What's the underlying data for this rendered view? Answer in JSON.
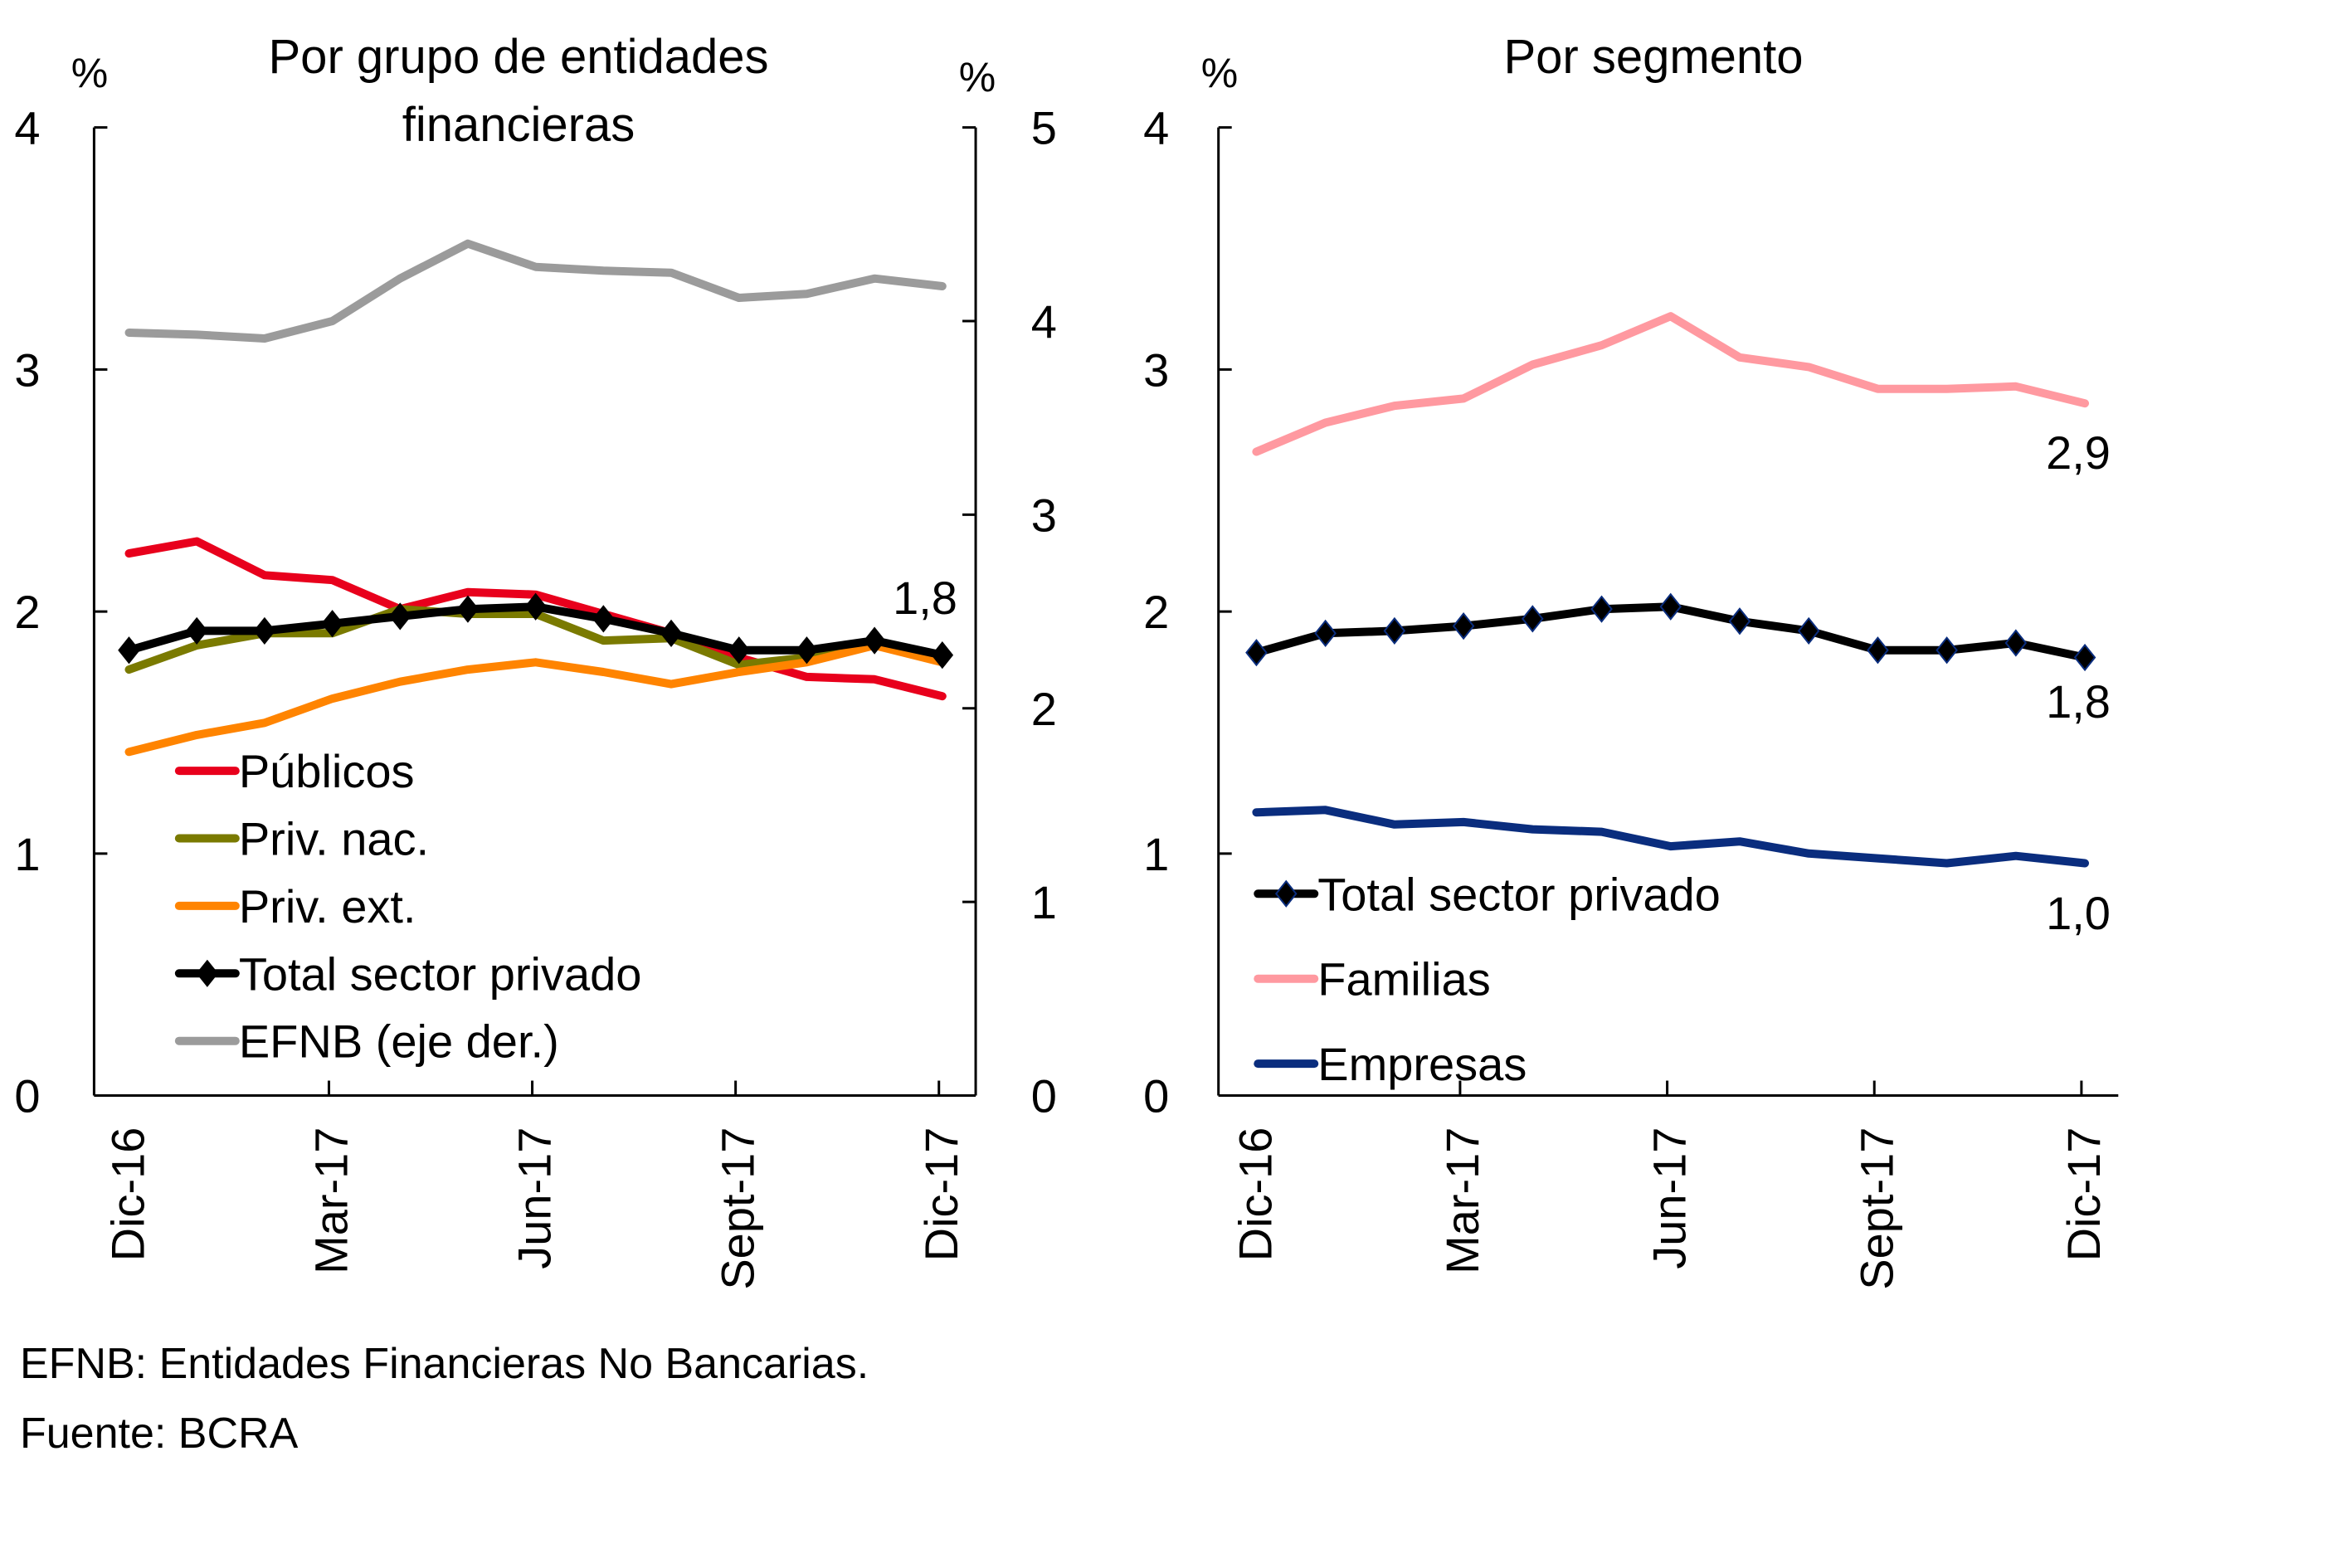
{
  "charts": [
    {
      "title_lines": [
        "Por grupo de entidades",
        "financieras"
      ],
      "left_unit": "%",
      "right_unit": "%",
      "left_ylim": [
        0,
        4
      ],
      "right_ylim": [
        0,
        5
      ],
      "left_ticks": [
        "0",
        "1",
        "2",
        "3",
        "4"
      ],
      "right_ticks": [
        "0",
        "1",
        "2",
        "3",
        "4",
        "5"
      ],
      "xtick_labels": [
        "Dic-16",
        "Mar-17",
        "Jun-17",
        "Sept-17",
        "Dic-17"
      ],
      "end_label": "1,8",
      "legend": [
        "Públicos",
        "Priv. nac.",
        "Priv. ext.",
        "Total sector privado",
        "EFNB (eje der.)"
      ]
    },
    {
      "title_lines": [
        "Por segmento"
      ],
      "left_unit": "%",
      "left_ylim": [
        0,
        4
      ],
      "left_ticks": [
        "0",
        "1",
        "2",
        "3",
        "4"
      ],
      "xtick_labels": [
        "Dic-16",
        "Mar-17",
        "Jun-17",
        "Sept-17",
        "Dic-17"
      ],
      "end_labels": [
        "2,9",
        "1,8",
        "1,0"
      ],
      "legend": [
        "Total sector privado",
        "Familias",
        "Empresas"
      ]
    }
  ],
  "notes": {
    "line1": "EFNB: Entidades Financieras No Bancarias.",
    "line2": "Fuente: BCRA"
  },
  "chart_data": [
    {
      "type": "line",
      "title": "Por grupo de entidades financieras",
      "xlabel": "",
      "ylabel": "%",
      "y2label": "%",
      "ylim": [
        0,
        4
      ],
      "y2lim": [
        0,
        5
      ],
      "grid": false,
      "legend_position": "bottom-left",
      "x": [
        "Dic-16",
        "Ene-17",
        "Feb-17",
        "Mar-17",
        "Abr-17",
        "May-17",
        "Jun-17",
        "Jul-17",
        "Ago-17",
        "Sept-17",
        "Oct-17",
        "Nov-17",
        "Dic-17"
      ],
      "xtick_labels": [
        "Dic-16",
        "Mar-17",
        "Jun-17",
        "Sept-17",
        "Dic-17"
      ],
      "series": [
        {
          "name": "Públicos",
          "axis": "left",
          "color": "#e8001c",
          "marker": "none",
          "values": [
            2.24,
            2.29,
            2.15,
            2.13,
            2.01,
            2.08,
            2.07,
            1.99,
            1.91,
            1.81,
            1.73,
            1.72,
            1.65
          ]
        },
        {
          "name": "Priv. nac.",
          "axis": "left",
          "color": "#7a7a00",
          "marker": "none",
          "values": [
            1.76,
            1.86,
            1.91,
            1.91,
            2.01,
            1.99,
            1.99,
            1.88,
            1.89,
            1.78,
            1.81,
            1.87,
            1.82
          ]
        },
        {
          "name": "Priv. ext.",
          "axis": "left",
          "color": "#ff8400",
          "marker": "none",
          "values": [
            1.42,
            1.49,
            1.54,
            1.64,
            1.71,
            1.76,
            1.79,
            1.75,
            1.7,
            1.75,
            1.79,
            1.86,
            1.79
          ]
        },
        {
          "name": "Total sector privado",
          "axis": "left",
          "color": "#000000",
          "marker": "diamond",
          "values": [
            1.84,
            1.92,
            1.92,
            1.95,
            1.98,
            2.01,
            2.02,
            1.97,
            1.91,
            1.84,
            1.84,
            1.88,
            1.82
          ]
        },
        {
          "name": "EFNB (eje der.)",
          "axis": "right",
          "color": "#9b9b9b",
          "marker": "none",
          "values": [
            3.94,
            3.93,
            3.91,
            4.0,
            4.22,
            4.4,
            4.28,
            4.26,
            4.25,
            4.12,
            4.14,
            4.22,
            4.18
          ]
        }
      ],
      "annotations": [
        {
          "text": "1,8",
          "series": "Total sector privado",
          "x": "Dic-17"
        }
      ]
    },
    {
      "type": "line",
      "title": "Por segmento",
      "xlabel": "",
      "ylabel": "%",
      "ylim": [
        0,
        4
      ],
      "grid": false,
      "legend_position": "bottom-left",
      "x": [
        "Dic-16",
        "Ene-17",
        "Feb-17",
        "Mar-17",
        "Abr-17",
        "May-17",
        "Jun-17",
        "Jul-17",
        "Ago-17",
        "Sept-17",
        "Oct-17",
        "Nov-17",
        "Dic-17"
      ],
      "xtick_labels": [
        "Dic-16",
        "Mar-17",
        "Jun-17",
        "Sept-17",
        "Dic-17"
      ],
      "series": [
        {
          "name": "Total sector privado",
          "axis": "left",
          "color": "#000000",
          "marker": "diamond",
          "values": [
            1.83,
            1.91,
            1.92,
            1.94,
            1.97,
            2.01,
            2.02,
            1.96,
            1.92,
            1.84,
            1.84,
            1.87,
            1.81
          ]
        },
        {
          "name": "Familias",
          "axis": "left",
          "color": "#ff99a0",
          "marker": "none",
          "values": [
            2.66,
            2.78,
            2.85,
            2.88,
            3.02,
            3.1,
            3.22,
            3.05,
            3.01,
            2.92,
            2.92,
            2.93,
            2.86
          ]
        },
        {
          "name": "Empresas",
          "axis": "left",
          "color": "#0a2d7e",
          "marker": "none",
          "values": [
            1.17,
            1.18,
            1.12,
            1.13,
            1.1,
            1.09,
            1.03,
            1.05,
            1.0,
            0.98,
            0.96,
            0.99,
            0.96
          ]
        }
      ],
      "annotations": [
        {
          "text": "2,9",
          "series": "Familias",
          "x": "Dic-17"
        },
        {
          "text": "1,8",
          "series": "Total sector privado",
          "x": "Dic-17"
        },
        {
          "text": "1,0",
          "series": "Empresas",
          "x": "Dic-17"
        }
      ]
    }
  ]
}
